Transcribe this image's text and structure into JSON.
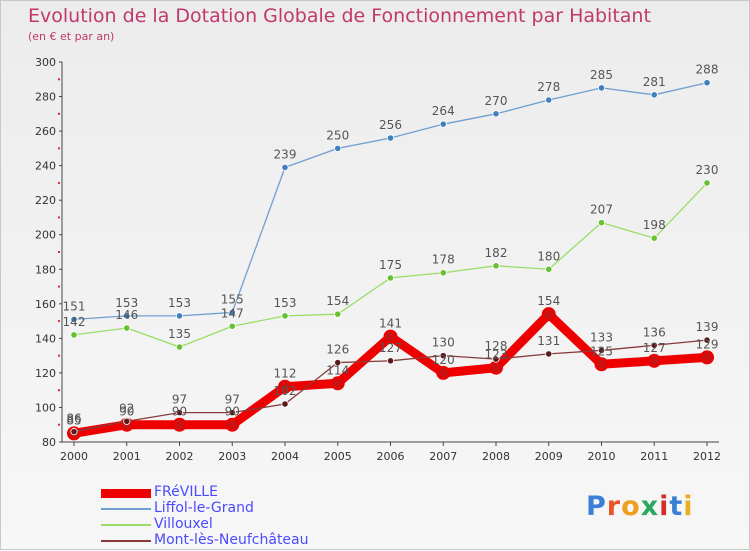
{
  "header": {
    "title": "Evolution de la Dotation Globale de Fonctionnement par Habitant",
    "subtitle": "(en € et par an)"
  },
  "logo": {
    "text": "Proxiti",
    "colors": [
      "#3a7fd5",
      "#e8552a",
      "#f0a020",
      "#2aa860",
      "#d0302a",
      "#3a7fd5",
      "#e8b020"
    ]
  },
  "chart_data": {
    "type": "line",
    "x": [
      "2000",
      "2001",
      "2002",
      "2003",
      "2004",
      "2005",
      "2006",
      "2007",
      "2008",
      "2009",
      "2010",
      "2011",
      "2012"
    ],
    "ylim": [
      80,
      300
    ],
    "yticks": [
      80,
      100,
      120,
      140,
      160,
      180,
      200,
      220,
      240,
      260,
      280,
      300
    ],
    "grid": false,
    "legend_position": "bottom-left",
    "series": [
      {
        "name": "FRéVILLE",
        "color": "#ee0000",
        "marker": "#cc1111",
        "thick": true,
        "values": [
          85,
          90,
          90,
          90,
          112,
          114,
          141,
          120,
          123,
          154,
          125,
          127,
          129
        ],
        "labels": [
          "85",
          "90",
          "90",
          "90",
          "112",
          "114",
          "141",
          "120",
          "123",
          "154",
          "125",
          "127",
          "129"
        ]
      },
      {
        "name": "Liffol-le-Grand",
        "color": "#6f9fd0",
        "marker": "#3f7fc0",
        "thick": false,
        "values": [
          151,
          153,
          153,
          155,
          239,
          250,
          256,
          264,
          270,
          278,
          285,
          281,
          288
        ],
        "labels": [
          "151",
          "153",
          "153",
          "155",
          "239",
          "250",
          "256",
          "264",
          "270",
          "278",
          "285",
          "281",
          "288"
        ]
      },
      {
        "name": "Villouxel",
        "color": "#99dd66",
        "marker": "#66c030",
        "thick": false,
        "values": [
          142,
          146,
          135,
          147,
          153,
          154,
          175,
          178,
          182,
          180,
          207,
          198,
          230
        ],
        "labels": [
          "142",
          "146",
          "135",
          "147",
          "153",
          "154",
          "175",
          "178",
          "182",
          "180",
          "207",
          "198",
          "230"
        ]
      },
      {
        "name": "Mont-lès-Neufchâteau",
        "color": "#8a3a3a",
        "marker": "#5a1a1a",
        "thick": false,
        "values": [
          86,
          92,
          97,
          97,
          102,
          126,
          127,
          130,
          128,
          131,
          133,
          136,
          139
        ],
        "labels": [
          "86",
          "92",
          "97",
          "97",
          "102",
          "126",
          "127",
          "130",
          "128",
          "131",
          "133",
          "136",
          "139"
        ]
      }
    ]
  }
}
